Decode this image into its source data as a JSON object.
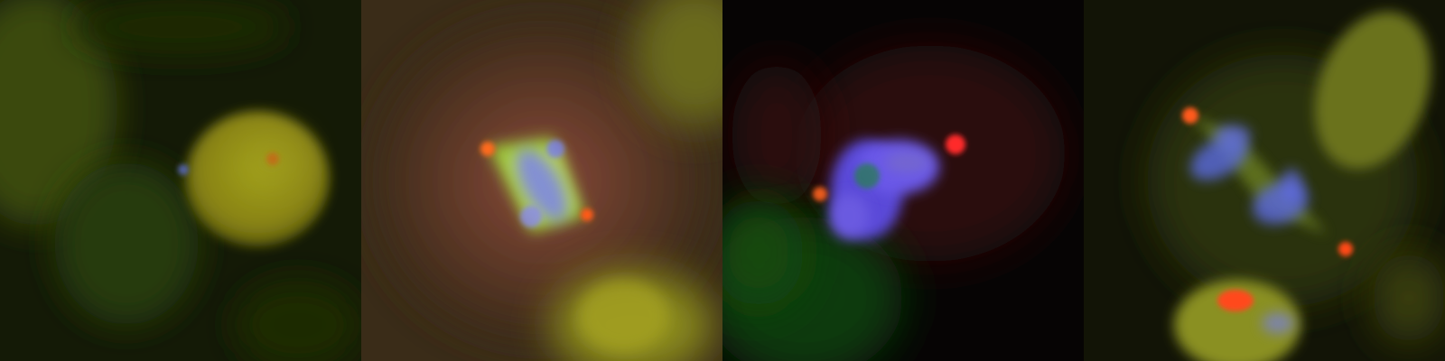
{
  "image": {
    "kind": "fluorescence-microscopy-montage",
    "panel_count": 4,
    "channels": {
      "dna": "#5a66ff",
      "microtubules": "#9acc3a",
      "centrosome": "#ff4a1a",
      "background_cytoplasm": "#6e6a14"
    },
    "panels": [
      {
        "name": "panel-interphase",
        "stage": "interphase"
      },
      {
        "name": "panel-metaphase",
        "stage": "metaphase"
      },
      {
        "name": "panel-prometaphase",
        "stage": "prometaphase"
      },
      {
        "name": "panel-anaphase",
        "stage": "anaphase"
      }
    ]
  }
}
